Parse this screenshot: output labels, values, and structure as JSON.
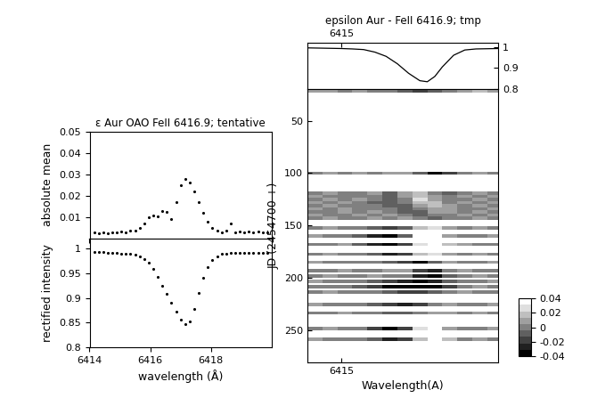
{
  "chart_data": [
    {
      "type": "scatter",
      "title": "ε Aur OAO FeII 6416.9; tentative",
      "y_label": "absolute mean",
      "color": "black",
      "marker": "o",
      "tick_labels": "y",
      "x": [
        6414.0,
        6414.15,
        6414.3,
        6414.45,
        6414.6,
        6414.75,
        6414.9,
        6415.05,
        6415.2,
        6415.35,
        6415.5,
        6415.65,
        6415.8,
        6415.95,
        6416.1,
        6416.25,
        6416.4,
        6416.55,
        6416.7,
        6416.85,
        6417.0,
        6417.15,
        6417.3,
        6417.45,
        6417.6,
        6417.75,
        6417.9,
        6418.05,
        6418.2,
        6418.35,
        6418.5,
        6418.65,
        6418.8,
        6418.95,
        6419.1,
        6419.25,
        6419.4,
        6419.55,
        6419.7,
        6419.85
      ],
      "values": [
        0.003,
        0.003,
        0.0025,
        0.003,
        0.0025,
        0.003,
        0.003,
        0.0035,
        0.003,
        0.004,
        0.004,
        0.005,
        0.007,
        0.01,
        0.011,
        0.0105,
        0.013,
        0.0125,
        0.009,
        0.017,
        0.025,
        0.028,
        0.026,
        0.022,
        0.017,
        0.012,
        0.008,
        0.005,
        0.004,
        0.003,
        0.004,
        0.007,
        0.003,
        0.0035,
        0.003,
        0.0035,
        0.003,
        0.0035,
        0.003,
        0.003
      ],
      "xlim": [
        6414,
        6420
      ],
      "xticks": [
        6414,
        6416,
        6418
      ],
      "ylim": [
        0,
        0.05
      ],
      "yticks": [
        0.01,
        0.02,
        0.03,
        0.04,
        0.05
      ]
    },
    {
      "type": "scatter",
      "x_label": "wavelength (Å)",
      "y_label": "rectified intensity",
      "color": "black",
      "marker": "o",
      "x": [
        6414.0,
        6414.15,
        6414.3,
        6414.45,
        6414.6,
        6414.75,
        6414.9,
        6415.05,
        6415.2,
        6415.35,
        6415.5,
        6415.65,
        6415.8,
        6415.95,
        6416.1,
        6416.25,
        6416.4,
        6416.55,
        6416.7,
        6416.85,
        6417.0,
        6417.15,
        6417.3,
        6417.45,
        6417.6,
        6417.75,
        6417.9,
        6418.05,
        6418.2,
        6418.35,
        6418.5,
        6418.65,
        6418.8,
        6418.95,
        6419.1,
        6419.25,
        6419.4,
        6419.55,
        6419.7,
        6419.85
      ],
      "values": [
        0.995,
        0.994,
        0.993,
        0.993,
        0.992,
        0.992,
        0.991,
        0.99,
        0.99,
        0.989,
        0.987,
        0.984,
        0.979,
        0.971,
        0.958,
        0.942,
        0.925,
        0.908,
        0.89,
        0.872,
        0.856,
        0.847,
        0.852,
        0.878,
        0.91,
        0.94,
        0.962,
        0.977,
        0.985,
        0.989,
        0.99,
        0.991,
        0.991,
        0.992,
        0.992,
        0.991,
        0.992,
        0.992,
        0.991,
        0.992
      ],
      "xlim": [
        6414,
        6420
      ],
      "xticks": [
        6414,
        6416,
        6418
      ],
      "ylim": [
        0.8,
        1.02
      ],
      "yticks": [
        0.8,
        0.85,
        0.9,
        0.95,
        1
      ]
    },
    {
      "type": "line",
      "title": "epsilon Aur - FeII 6416.9; tmp",
      "color": "black",
      "line_style": "solid",
      "x": [
        6414.1,
        6414.4,
        6414.7,
        6415.0,
        6415.3,
        6415.6,
        6415.9,
        6416.2,
        6416.5,
        6416.8,
        6417.1,
        6417.3,
        6417.5,
        6417.7,
        6418.0,
        6418.3,
        6418.6,
        6418.9,
        6419.2
      ],
      "values": [
        0.995,
        0.994,
        0.993,
        0.992,
        0.99,
        0.987,
        0.975,
        0.955,
        0.92,
        0.875,
        0.84,
        0.835,
        0.86,
        0.905,
        0.96,
        0.985,
        0.99,
        0.991,
        0.992
      ],
      "xlim": [
        6414.1,
        6419.2
      ],
      "xticks": [
        6415
      ],
      "ylim": [
        0.8,
        1.02
      ],
      "yticks": [
        1,
        0.9,
        0.8
      ]
    },
    {
      "type": "heatmap",
      "x_label": "Wavelength(A)",
      "y_label": "JD (2454700 +)",
      "xlim": [
        6414.1,
        6419.2
      ],
      "xticks": [
        6415
      ],
      "ylim": [
        280,
        20
      ],
      "yticks": [
        50,
        100,
        150,
        200,
        250
      ],
      "wavelengths": [
        6414.3,
        6414.7,
        6415.1,
        6415.5,
        6415.9,
        6416.3,
        6416.7,
        6417.1,
        6417.5,
        6417.9,
        6418.3,
        6418.7,
        6419.1
      ],
      "rows": [
        {
          "jd": 22,
          "values": [
            0.005,
            0.005,
            0.0,
            0.005,
            0.0,
            0.0,
            -0.01,
            -0.02,
            -0.01,
            0.0,
            0.01,
            0.02,
            0.005
          ]
        },
        {
          "jd": 100,
          "values": [
            0.0,
            0.005,
            0.0,
            0.005,
            0.0,
            0.005,
            0.01,
            -0.01,
            -0.04,
            -0.02,
            0.0,
            0.005,
            0.0
          ]
        },
        {
          "jd": 119,
          "values": [
            0.0,
            0.005,
            0.0,
            0.0,
            0.005,
            -0.005,
            0.01,
            0.015,
            0.0,
            -0.005,
            0.0,
            0.005,
            0.0
          ]
        },
        {
          "jd": 122,
          "values": [
            0.005,
            0.0,
            0.0,
            0.0,
            0.0,
            -0.01,
            0.01,
            0.02,
            0.005,
            0.0,
            0.005,
            0.0,
            0.005
          ]
        },
        {
          "jd": 125,
          "values": [
            0.0,
            0.005,
            0.0,
            0.005,
            0.0,
            -0.01,
            0.0,
            0.025,
            0.01,
            0.0,
            0.0,
            0.005,
            0.0
          ]
        },
        {
          "jd": 128,
          "values": [
            0.005,
            0.0,
            0.005,
            0.0,
            -0.005,
            -0.01,
            0.0,
            0.02,
            0.015,
            0.0,
            0.005,
            0.0,
            0.005
          ]
        },
        {
          "jd": 131,
          "values": [
            0.0,
            0.005,
            0.0,
            0.0,
            0.0,
            -0.005,
            -0.005,
            0.01,
            0.015,
            0.005,
            0.0,
            0.005,
            0.0
          ]
        },
        {
          "jd": 134,
          "values": [
            0.005,
            0.0,
            0.005,
            0.0,
            0.0,
            0.0,
            -0.01,
            0.0,
            0.01,
            0.005,
            0.0,
            0.0,
            0.005
          ]
        },
        {
          "jd": 137,
          "values": [
            0.0,
            0.0,
            0.005,
            0.0,
            0.005,
            0.0,
            -0.005,
            -0.005,
            0.005,
            0.005,
            0.0,
            0.005,
            0.0
          ]
        },
        {
          "jd": 140,
          "values": [
            0.005,
            0.0,
            0.0,
            0.005,
            0.0,
            0.005,
            0.0,
            -0.005,
            0.0,
            0.0,
            0.005,
            0.0,
            0.005
          ]
        },
        {
          "jd": 143,
          "values": [
            0.0,
            0.005,
            0.0,
            0.0,
            0.005,
            0.0,
            0.005,
            0.0,
            -0.005,
            0.0,
            0.0,
            0.005,
            0.0
          ]
        },
        {
          "jd": 152,
          "values": [
            0.0,
            0.005,
            0.0,
            0.0,
            -0.01,
            -0.02,
            -0.01,
            0.02,
            0.03,
            0.01,
            0.0,
            0.005,
            0.0
          ]
        },
        {
          "jd": 160,
          "values": [
            0.005,
            0.0,
            0.0,
            -0.01,
            -0.03,
            -0.04,
            -0.01,
            0.04,
            0.04,
            0.01,
            0.0,
            0.0,
            0.005
          ]
        },
        {
          "jd": 168,
          "values": [
            0.0,
            0.0,
            0.005,
            -0.01,
            -0.03,
            -0.04,
            -0.02,
            0.03,
            0.04,
            0.015,
            0.005,
            0.0,
            0.0
          ]
        },
        {
          "jd": 177,
          "values": [
            0.0,
            0.005,
            0.0,
            0.0,
            -0.01,
            -0.03,
            -0.02,
            0.02,
            0.03,
            0.01,
            0.0,
            0.005,
            0.0
          ]
        },
        {
          "jd": 185,
          "values": [
            0.005,
            0.0,
            0.0,
            0.0,
            0.0,
            -0.01,
            -0.02,
            -0.04,
            -0.01,
            0.01,
            0.0,
            0.0,
            0.005
          ]
        },
        {
          "jd": 193,
          "values": [
            0.0,
            0.0,
            0.005,
            0.0,
            0.0,
            0.005,
            0.01,
            -0.02,
            -0.03,
            0.0,
            0.005,
            0.0,
            0.0
          ]
        },
        {
          "jd": 198,
          "values": [
            0.0,
            0.005,
            0.0,
            0.0,
            0.005,
            0.0,
            0.0,
            -0.03,
            -0.04,
            -0.01,
            0.0,
            0.005,
            0.0
          ]
        },
        {
          "jd": 203,
          "values": [
            0.005,
            0.0,
            0.0,
            0.0,
            -0.01,
            -0.02,
            -0.03,
            -0.04,
            -0.03,
            -0.01,
            0.0,
            0.0,
            0.005
          ]
        },
        {
          "jd": 208,
          "values": [
            0.0,
            0.0,
            0.0,
            -0.01,
            -0.02,
            -0.04,
            -0.04,
            -0.04,
            -0.04,
            -0.02,
            0.0,
            0.005,
            0.0
          ]
        },
        {
          "jd": 213,
          "values": [
            0.0,
            0.005,
            0.0,
            0.0,
            0.0,
            -0.01,
            -0.02,
            -0.02,
            -0.01,
            0.0,
            0.005,
            0.0,
            0.0
          ]
        },
        {
          "jd": 225,
          "values": [
            0.005,
            0.0,
            0.0,
            0.0,
            -0.01,
            -0.02,
            -0.03,
            -0.02,
            0.0,
            0.01,
            0.0,
            0.0,
            0.005
          ]
        },
        {
          "jd": 233,
          "values": [
            0.0,
            0.0,
            0.005,
            0.0,
            0.0,
            -0.01,
            -0.01,
            0.0,
            0.01,
            0.005,
            0.0,
            0.005,
            0.0
          ]
        },
        {
          "jd": 248,
          "values": [
            0.0,
            0.005,
            0.0,
            0.0,
            -0.02,
            -0.04,
            -0.02,
            0.03,
            0.04,
            0.01,
            0.0,
            0.0,
            0.005
          ]
        },
        {
          "jd": 258,
          "values": [
            0.005,
            0.0,
            0.0,
            0.0,
            -0.01,
            -0.03,
            -0.02,
            0.02,
            0.04,
            0.02,
            0.0,
            0.005,
            0.0
          ]
        }
      ],
      "color_range": [
        -0.04,
        0.04
      ],
      "color_ticks": [
        -0.04,
        -0.02,
        0,
        0.02,
        0.04
      ]
    }
  ]
}
